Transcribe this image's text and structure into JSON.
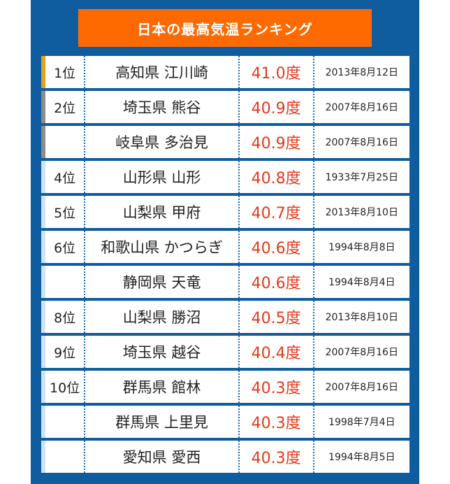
{
  "title": "日本の最高気温ランキング",
  "colors": {
    "panel": "#0f5c9e",
    "title_bg": "#ff6a00",
    "temp_text": "#e8381a",
    "gold": "#e4a11b",
    "silver": "#8c8c8c",
    "light": "#cfe4f8"
  },
  "rows": [
    {
      "rank": "1位",
      "place": "高知県 江川崎",
      "temp": "41.0度",
      "date": "2013年8月12日",
      "medal": "gold"
    },
    {
      "rank": "2位",
      "place": "埼玉県 熊谷",
      "temp": "40.9度",
      "date": "2007年8月16日",
      "medal": "silver"
    },
    {
      "rank": "",
      "place": "岐阜県 多治見",
      "temp": "40.9度",
      "date": "2007年8月16日",
      "medal": "silver"
    },
    {
      "rank": "4位",
      "place": "山形県 山形",
      "temp": "40.8度",
      "date": "1933年7月25日",
      "medal": "light"
    },
    {
      "rank": "5位",
      "place": "山梨県 甲府",
      "temp": "40.7度",
      "date": "2013年8月10日",
      "medal": "light"
    },
    {
      "rank": "6位",
      "place": "和歌山県 かつらぎ",
      "temp": "40.6度",
      "date": "1994年8月8日",
      "medal": "light"
    },
    {
      "rank": "",
      "place": "静岡県 天竜",
      "temp": "40.6度",
      "date": "1994年8月4日",
      "medal": "light"
    },
    {
      "rank": "8位",
      "place": "山梨県 勝沼",
      "temp": "40.5度",
      "date": "2013年8月10日",
      "medal": "light"
    },
    {
      "rank": "9位",
      "place": "埼玉県 越谷",
      "temp": "40.4度",
      "date": "2007年8月16日",
      "medal": "light"
    },
    {
      "rank": "10位",
      "place": "群馬県 館林",
      "temp": "40.3度",
      "date": "2007年8月16日",
      "medal": "light"
    },
    {
      "rank": "",
      "place": "群馬県 上里見",
      "temp": "40.3度",
      "date": "1998年7月4日",
      "medal": "light"
    },
    {
      "rank": "",
      "place": "愛知県 愛西",
      "temp": "40.3度",
      "date": "1994年8月5日",
      "medal": "light"
    }
  ]
}
